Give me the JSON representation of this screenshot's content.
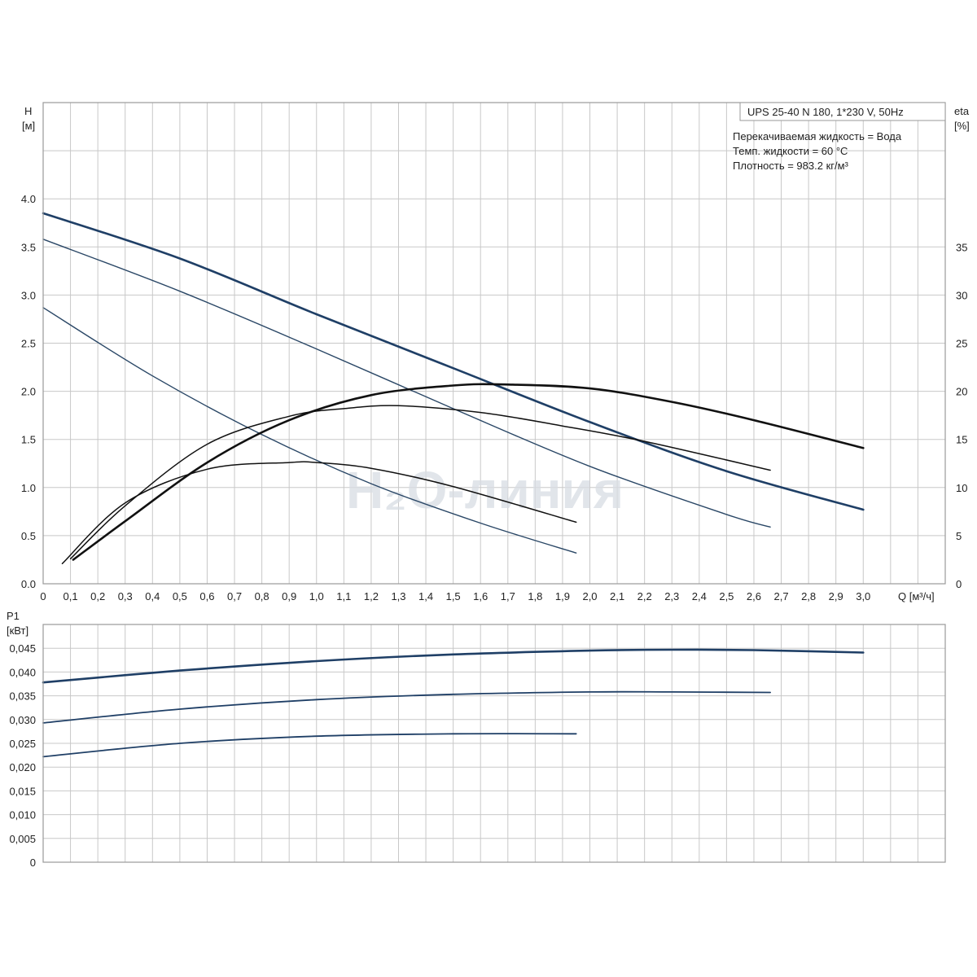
{
  "chart_data": [
    {
      "type": "line",
      "name_left_axis": "H",
      "ylabel": "H",
      "yunit": "[м]",
      "ylabel_right": "eta",
      "yunit_right": "[%]",
      "xlabel": "Q [м³/ч]",
      "xlim": [
        0,
        3.3
      ],
      "ylim": [
        0,
        5.0
      ],
      "ylim_right": [
        0,
        50
      ],
      "xticks": [
        "0",
        "0,1",
        "0,2",
        "0,3",
        "0,4",
        "0,5",
        "0,6",
        "0,7",
        "0,8",
        "0,9",
        "1,0",
        "1,1",
        "1,2",
        "1,3",
        "1,4",
        "1,5",
        "1,6",
        "1,7",
        "1,8",
        "1,9",
        "2,0",
        "2,1",
        "2,2",
        "2,3",
        "2,4",
        "2,5",
        "2,6",
        "2,7",
        "2,8",
        "2,9",
        "3,0"
      ],
      "yticks": [
        "0.0",
        "0.5",
        "1.0",
        "1.5",
        "2.0",
        "2.5",
        "3.0",
        "3.5",
        "4.0"
      ],
      "yticks_right": [
        "0",
        "5",
        "10",
        "15",
        "20",
        "25",
        "30",
        "35"
      ],
      "grid": true,
      "info": {
        "title": "UPS 25-40 N 180, 1*230 V, 50Hz",
        "line1": "Перекачиваемая жидкость = Вода",
        "line2": "Темп. жидкости = 60 °C",
        "line3": "Плотность = 983.2 кг/м³"
      },
      "watermark": "H₂O-линия",
      "head_series": [
        {
          "speed": 3,
          "color": "#1f3f66",
          "width": 2.6,
          "x": [
            0,
            0.5,
            1.0,
            1.5,
            2.0,
            2.5,
            3.0
          ],
          "y": [
            3.85,
            3.38,
            2.8,
            2.24,
            1.68,
            1.17,
            0.77
          ]
        },
        {
          "speed": 2,
          "color": "#2a4766",
          "width": 1.4,
          "x": [
            0,
            0.5,
            1.0,
            1.5,
            2.0,
            2.5,
            2.66
          ],
          "y": [
            3.58,
            3.04,
            2.44,
            1.82,
            1.22,
            0.72,
            0.59
          ]
        },
        {
          "speed": 1,
          "color": "#2a4766",
          "width": 1.4,
          "x": [
            0,
            0.4,
            0.8,
            1.2,
            1.6,
            1.95
          ],
          "y": [
            2.87,
            2.16,
            1.55,
            1.04,
            0.63,
            0.32
          ]
        }
      ],
      "eta_series": [
        {
          "speed": 3,
          "color": "#111111",
          "width": 2.6,
          "x": [
            0.11,
            0.3,
            0.6,
            0.9,
            1.2,
            1.5,
            1.7,
            2.0,
            2.3,
            2.6,
            3.0
          ],
          "y": [
            2.5,
            6.5,
            12.6,
            17.0,
            19.6,
            20.6,
            20.7,
            20.3,
            18.9,
            17.0,
            14.1
          ]
        },
        {
          "speed": 2,
          "color": "#111111",
          "width": 1.5,
          "x": [
            0.1,
            0.3,
            0.6,
            0.9,
            1.1,
            1.3,
            1.6,
            1.9,
            2.2,
            2.66
          ],
          "y": [
            2.6,
            8.1,
            14.5,
            17.4,
            18.2,
            18.5,
            17.8,
            16.4,
            14.8,
            11.8
          ]
        },
        {
          "speed": 1,
          "color": "#111111",
          "width": 1.5,
          "x": [
            0.07,
            0.3,
            0.6,
            0.9,
            1.0,
            1.2,
            1.5,
            1.95
          ],
          "y": [
            2.1,
            8.4,
            11.9,
            12.6,
            12.6,
            12.0,
            10.1,
            6.4
          ]
        }
      ]
    },
    {
      "type": "line",
      "ylabel": "P1",
      "yunit": "[кВт]",
      "xlim": [
        0,
        3.3
      ],
      "ylim": [
        0,
        0.05
      ],
      "yticks": [
        "0",
        "0,005",
        "0,010",
        "0,015",
        "0,020",
        "0,025",
        "0,030",
        "0,035",
        "0,040",
        "0,045"
      ],
      "grid": true,
      "series": [
        {
          "speed": 3,
          "color": "#1f3f66",
          "width": 2.6,
          "x": [
            0,
            0.5,
            1.0,
            1.5,
            2.0,
            2.3,
            2.6,
            3.0
          ],
          "y": [
            0.0378,
            0.0403,
            0.0423,
            0.0437,
            0.0445,
            0.0447,
            0.0446,
            0.0441
          ]
        },
        {
          "speed": 2,
          "color": "#1f3f66",
          "width": 1.8,
          "x": [
            0,
            0.5,
            1.0,
            1.5,
            2.0,
            2.3,
            2.66
          ],
          "y": [
            0.0293,
            0.0322,
            0.0342,
            0.0353,
            0.0358,
            0.0358,
            0.0357
          ]
        },
        {
          "speed": 1,
          "color": "#1f3f66",
          "width": 1.8,
          "x": [
            0,
            0.5,
            1.0,
            1.5,
            1.95
          ],
          "y": [
            0.0222,
            0.025,
            0.0265,
            0.027,
            0.027
          ]
        }
      ]
    }
  ]
}
